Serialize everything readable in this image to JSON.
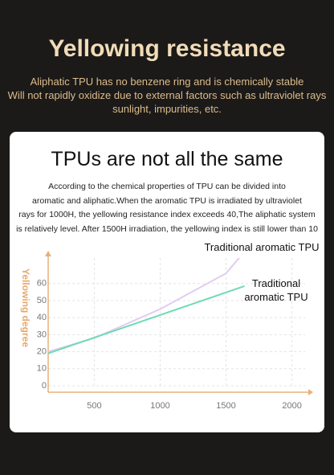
{
  "header": {
    "title": "Yellowing resistance",
    "lines": [
      "Aliphatic TPU has no benzene ring and is chemically stable",
      "Will not rapidly oxidize due to external factors such as ultraviolet rays",
      "sunlight, impurities, etc."
    ]
  },
  "card": {
    "title": "TPUs are not all the same",
    "lines": [
      "According to the chemical properties of TPU can be divided into",
      "aromatic and aliphatic.When the aromatic TPU is irradiated by ultraviolet",
      "rays for 1000H, the yellowing resistance index exceeds 40,The aliphatic system",
      "is relatively level. After 1500H irradiation, the yellowing index is still lower than 10"
    ]
  },
  "chart_data": {
    "type": "line",
    "y_label": "Yellowing degree",
    "xlim": [
      150,
      2100
    ],
    "ylim": [
      0,
      75
    ],
    "xticks": [
      500,
      1000,
      1500,
      2000
    ],
    "yticks": [
      0,
      10,
      20,
      30,
      40,
      50,
      60
    ],
    "grid": true,
    "series": [
      {
        "name": "Traditional aromatic TPU",
        "color": "#e2ccf2",
        "x": [
          150,
          500,
          1000,
          1500,
          1610
        ],
        "values": [
          20,
          28,
          45,
          66,
          76
        ]
      },
      {
        "name": "Traditional aromatic TPU",
        "color": "#6fdbb4",
        "x": [
          150,
          1640
        ],
        "values": [
          19,
          58.5
        ]
      }
    ]
  }
}
